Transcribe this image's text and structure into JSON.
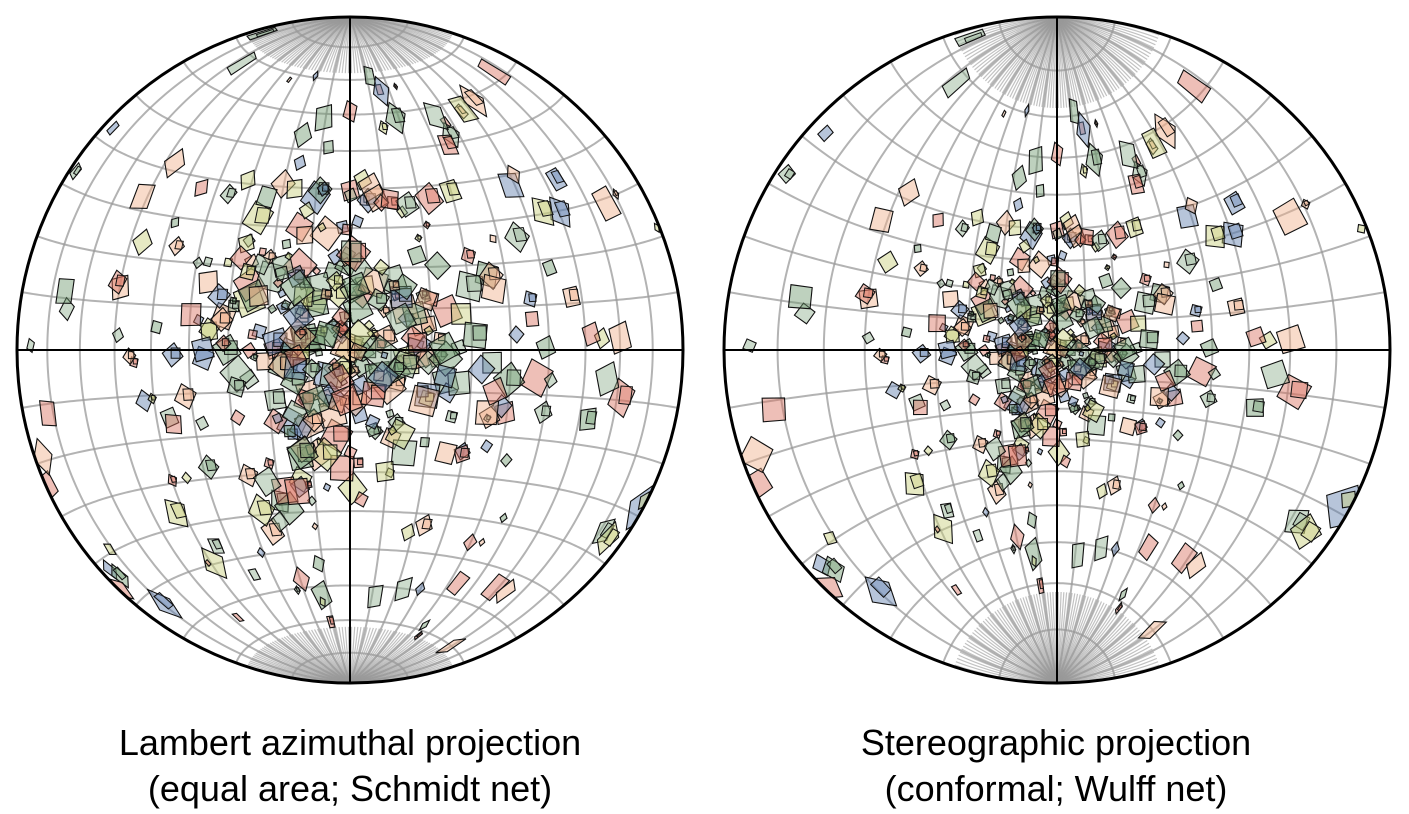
{
  "nets": [
    {
      "id": "lambert",
      "projection": "equal-area",
      "caption_line1": "Lambert azimuthal projection",
      "caption_line2": "(equal area; Schmidt net)"
    },
    {
      "id": "stereo",
      "projection": "conformal",
      "caption_line1": "Stereographic projection",
      "caption_line2": "(conformal; Wulff net)"
    }
  ],
  "grid_interval_degrees": 10,
  "colors": {
    "grid": "#9a9a9a",
    "outline": "#000000",
    "green": "#6f9a6f",
    "red": "#d9715f",
    "peach": "#f0b08a",
    "olive": "#c8cf7a",
    "blue": "#5f7fae",
    "sage": "#8fb08f"
  }
}
